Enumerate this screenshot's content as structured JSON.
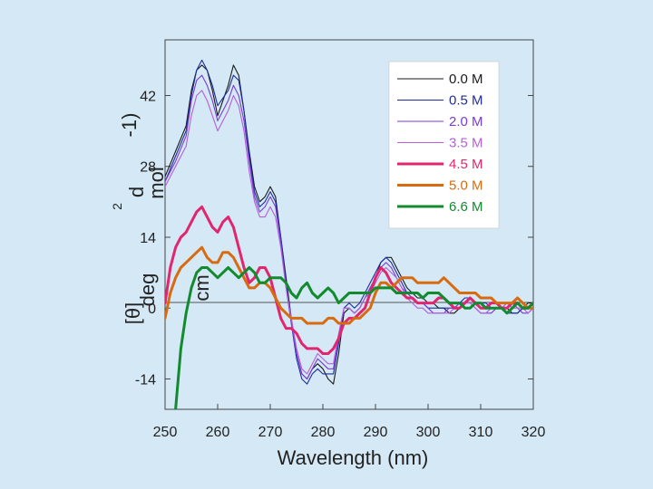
{
  "chart_data": {
    "type": "line",
    "xlabel": "Wavelength (nm)",
    "ylabel": {
      "theta": "[θ]",
      "deg": "deg",
      "cm": "cm",
      "sq": "2",
      "d": "d",
      "mol": "mol",
      "neg": "-1)"
    },
    "xlim": [
      250,
      320
    ],
    "ylim": [
      -20,
      53
    ],
    "xticks": [
      "250",
      "260",
      "270",
      "280",
      "290",
      "300",
      "310",
      "320"
    ],
    "yticks": [
      "42",
      "28",
      "14",
      "0",
      "-14"
    ],
    "legend_position": "top-right",
    "series": [
      {
        "name": "0.0 M",
        "color": "#1a1a1a",
        "width": 1.1,
        "dash": "",
        "x": [
          250,
          252,
          254,
          255,
          256,
          257,
          258,
          259,
          260,
          262,
          263,
          264,
          265,
          266,
          267,
          268,
          269,
          270,
          271,
          272,
          273,
          274,
          275,
          276,
          277,
          278,
          279,
          280,
          281,
          282,
          283,
          284,
          285,
          286,
          287,
          288,
          289,
          290,
          291,
          292,
          293,
          294,
          295,
          296,
          297,
          298,
          299,
          300,
          301,
          302,
          303,
          304,
          305,
          306,
          307,
          308,
          309,
          310,
          311,
          312,
          313,
          314,
          315,
          316,
          317,
          318,
          319,
          320
        ],
        "y": [
          26,
          31,
          36,
          43,
          47,
          48,
          47,
          43,
          38,
          44,
          48,
          46,
          39,
          31,
          24,
          21,
          22,
          24,
          22,
          14,
          6,
          -2,
          -9,
          -13,
          -14,
          -12,
          -11,
          -12,
          -14,
          -15,
          -9,
          -1,
          0,
          -1,
          0,
          2,
          4,
          6,
          9,
          10,
          10,
          8,
          6,
          4,
          3,
          2,
          2,
          1,
          1,
          0,
          0,
          -1,
          -1,
          0,
          1,
          2,
          1,
          1,
          0,
          0,
          0,
          0,
          0,
          -1,
          -1,
          0,
          1,
          1
        ]
      },
      {
        "name": "0.5 M",
        "color": "#1f2e9e",
        "width": 1.1,
        "dash": "",
        "x": [
          250,
          252,
          254,
          255,
          256,
          257,
          258,
          259,
          260,
          262,
          263,
          264,
          265,
          266,
          267,
          268,
          269,
          270,
          271,
          272,
          273,
          274,
          275,
          276,
          277,
          278,
          279,
          280,
          281,
          282,
          283,
          284,
          285,
          286,
          287,
          288,
          289,
          290,
          291,
          292,
          293,
          294,
          295,
          296,
          297,
          298,
          299,
          300,
          301,
          302,
          303,
          304,
          305,
          306,
          307,
          308,
          309,
          310,
          311,
          312,
          313,
          314,
          315,
          316,
          317,
          318,
          319,
          320
        ],
        "y": [
          25,
          30,
          35,
          42,
          47,
          49,
          47,
          44,
          40,
          43,
          46,
          45,
          39,
          30,
          23,
          20,
          21,
          23,
          21,
          14,
          5,
          -3,
          -10,
          -14,
          -15,
          -13,
          -12,
          -13,
          -13,
          -13,
          -7,
          0,
          1,
          0,
          1,
          3,
          5,
          7,
          9,
          10,
          9,
          7,
          5,
          3,
          2,
          1,
          1,
          0,
          0,
          0,
          0,
          0,
          0,
          1,
          2,
          2,
          1,
          1,
          1,
          0,
          0,
          0,
          -1,
          -1,
          -1,
          0,
          0,
          1
        ]
      },
      {
        "name": "2.0 M",
        "color": "#7a3bd6",
        "width": 1.1,
        "dash": "",
        "x": [
          250,
          252,
          254,
          255,
          256,
          257,
          258,
          259,
          260,
          262,
          263,
          264,
          265,
          266,
          267,
          268,
          269,
          270,
          271,
          272,
          273,
          274,
          275,
          276,
          277,
          278,
          279,
          280,
          281,
          282,
          283,
          284,
          285,
          286,
          287,
          288,
          289,
          290,
          291,
          292,
          293,
          294,
          295,
          296,
          297,
          298,
          299,
          300,
          301,
          302,
          303,
          304,
          305,
          306,
          307,
          308,
          309,
          310,
          311,
          312,
          313,
          314,
          315,
          316,
          317,
          318,
          319,
          320
        ],
        "y": [
          25,
          29,
          34,
          41,
          45,
          46,
          44,
          41,
          37,
          41,
          44,
          42,
          37,
          29,
          22,
          19,
          20,
          22,
          20,
          13,
          4,
          -3,
          -9,
          -13,
          -14,
          -12,
          -10,
          -11,
          -12,
          -12,
          -6,
          0,
          0,
          -1,
          0,
          2,
          4,
          6,
          8,
          9,
          8,
          6,
          4,
          3,
          2,
          1,
          1,
          0,
          -1,
          -1,
          -1,
          0,
          0,
          1,
          1,
          1,
          0,
          -1,
          -1,
          -1,
          0,
          0,
          1,
          1,
          0,
          -1,
          -1,
          0
        ]
      },
      {
        "name": "3.5 M",
        "color": "#b55fd9",
        "width": 1.1,
        "dash": "",
        "x": [
          250,
          252,
          254,
          255,
          256,
          257,
          258,
          259,
          260,
          262,
          263,
          264,
          265,
          266,
          267,
          268,
          269,
          270,
          271,
          272,
          273,
          274,
          275,
          276,
          277,
          278,
          279,
          280,
          281,
          282,
          283,
          284,
          285,
          286,
          287,
          288,
          289,
          290,
          291,
          292,
          293,
          294,
          295,
          296,
          297,
          298,
          299,
          300,
          301,
          302,
          303,
          304,
          305,
          306,
          307,
          308,
          309,
          310,
          311,
          312,
          313,
          314,
          315,
          316,
          317,
          318,
          319,
          320
        ],
        "y": [
          24,
          28,
          32,
          38,
          42,
          43,
          41,
          38,
          35,
          39,
          42,
          40,
          35,
          27,
          21,
          18,
          18,
          20,
          18,
          12,
          4,
          -2,
          -8,
          -12,
          -13,
          -11,
          -9,
          -10,
          -11,
          -11,
          -5,
          0,
          0,
          -1,
          0,
          2,
          3,
          5,
          7,
          8,
          7,
          6,
          4,
          2,
          1,
          0,
          0,
          -1,
          -1,
          -1,
          -1,
          -1,
          0,
          0,
          1,
          1,
          0,
          -1,
          -1,
          0,
          0,
          0,
          1,
          0,
          0,
          0,
          -1,
          0
        ]
      },
      {
        "name": "4.5 M",
        "color": "#e0266e",
        "width": 3.0,
        "dash": "",
        "x": [
          250,
          251,
          252,
          253,
          254,
          255,
          256,
          257,
          258,
          259,
          260,
          261,
          262,
          263,
          264,
          265,
          266,
          267,
          268,
          269,
          270,
          271,
          272,
          273,
          274,
          275,
          276,
          277,
          278,
          279,
          280,
          281,
          282,
          283,
          284,
          285,
          286,
          287,
          288,
          289,
          290,
          291,
          292,
          293,
          294,
          295,
          296,
          297,
          298,
          299,
          300,
          301,
          302,
          303,
          304,
          305,
          306,
          307,
          308,
          309,
          310,
          311,
          312,
          313,
          314,
          315,
          316,
          317,
          318,
          319,
          320
        ],
        "y": [
          1,
          8,
          12,
          14,
          15,
          17,
          19,
          20,
          18,
          16,
          15,
          17,
          18,
          16,
          12,
          8,
          5,
          6,
          8,
          8,
          6,
          2,
          -2,
          -4,
          -4,
          -5,
          -7,
          -8,
          -8,
          -8,
          -9,
          -9,
          -8,
          -6,
          -3,
          -2,
          -2,
          -1,
          0,
          3,
          6,
          8,
          7,
          5,
          4,
          3,
          2,
          2,
          1,
          1,
          1,
          1,
          2,
          2,
          1,
          0,
          0,
          1,
          2,
          1,
          0,
          0,
          1,
          1,
          0,
          0,
          1,
          1,
          0,
          0,
          1
        ]
      },
      {
        "name": "5.0 M",
        "color": "#d86b10",
        "width": 3.0,
        "dash": "",
        "x": [
          250,
          251,
          252,
          253,
          254,
          255,
          256,
          257,
          258,
          259,
          260,
          261,
          262,
          263,
          264,
          265,
          266,
          267,
          268,
          269,
          270,
          271,
          272,
          273,
          274,
          275,
          276,
          277,
          278,
          279,
          280,
          281,
          282,
          283,
          284,
          285,
          286,
          287,
          288,
          289,
          290,
          291,
          292,
          293,
          294,
          295,
          296,
          297,
          298,
          299,
          300,
          301,
          302,
          303,
          304,
          305,
          306,
          307,
          308,
          309,
          310,
          311,
          312,
          313,
          314,
          315,
          316,
          317,
          318,
          319,
          320
        ],
        "y": [
          -2,
          3,
          6,
          8,
          9,
          10,
          11,
          12,
          10,
          9,
          9,
          11,
          11,
          10,
          8,
          6,
          4,
          4,
          5,
          5,
          4,
          2,
          0,
          -1,
          -2,
          -2,
          -2,
          -3,
          -3,
          -3,
          -3,
          -2,
          -2,
          -3,
          -3,
          -3,
          -2,
          -2,
          -1,
          0,
          3,
          5,
          5,
          4,
          5,
          6,
          6,
          6,
          5,
          5,
          5,
          5,
          5,
          6,
          5,
          4,
          3,
          3,
          3,
          3,
          2,
          2,
          2,
          1,
          1,
          1,
          1,
          2,
          1,
          0,
          0
        ]
      },
      {
        "name": "6.6 M",
        "color": "#128a2e",
        "width": 3.0,
        "dash": "",
        "x": [
          252,
          253,
          254,
          255,
          256,
          257,
          258,
          259,
          260,
          261,
          262,
          263,
          264,
          265,
          266,
          267,
          268,
          269,
          270,
          271,
          272,
          273,
          274,
          275,
          276,
          277,
          278,
          279,
          280,
          281,
          282,
          283,
          284,
          285,
          286,
          287,
          288,
          289,
          290,
          291,
          292,
          293,
          294,
          295,
          296,
          297,
          298,
          299,
          300,
          301,
          302,
          303,
          304,
          305,
          306,
          307,
          308,
          309,
          310,
          311,
          312,
          313,
          314,
          315,
          316,
          317,
          318,
          319,
          320
        ],
        "y": [
          -20,
          -8,
          -1,
          4,
          7,
          8,
          8,
          7,
          6,
          7,
          8,
          7,
          6,
          7,
          8,
          7,
          5,
          5,
          6,
          6,
          6,
          5,
          3,
          2,
          4,
          5,
          3,
          2,
          3,
          4,
          3,
          1,
          2,
          3,
          3,
          3,
          3,
          3,
          4,
          4,
          4,
          4,
          3,
          3,
          3,
          3,
          3,
          2,
          3,
          3,
          3,
          2,
          1,
          1,
          1,
          0,
          0,
          1,
          1,
          0,
          0,
          0,
          0,
          -1,
          0,
          1,
          0,
          0,
          1
        ]
      }
    ]
  }
}
